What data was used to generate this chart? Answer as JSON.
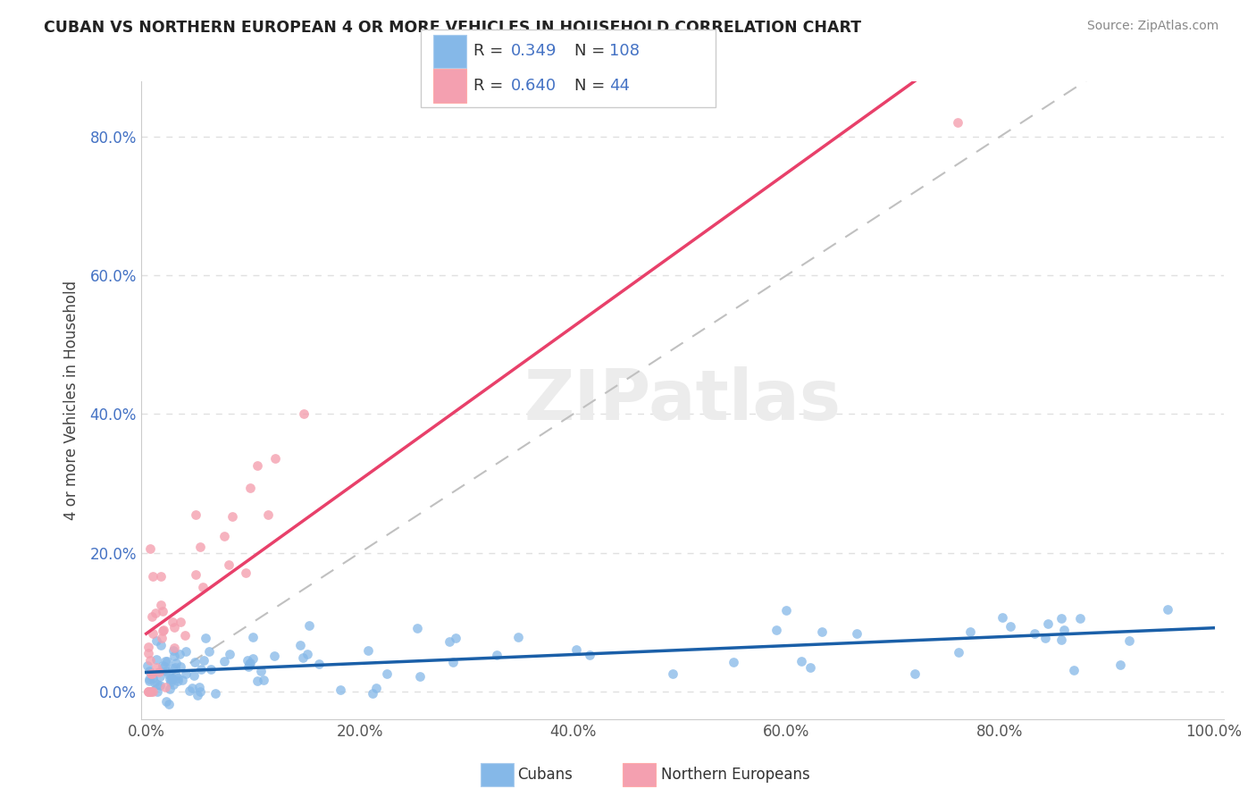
{
  "title": "CUBAN VS NORTHERN EUROPEAN 4 OR MORE VEHICLES IN HOUSEHOLD CORRELATION CHART",
  "source": "Source: ZipAtlas.com",
  "ylabel": "4 or more Vehicles in Household",
  "xlim": [
    -0.005,
    1.01
  ],
  "ylim": [
    -0.04,
    0.88
  ],
  "xticks": [
    0.0,
    0.2,
    0.4,
    0.6,
    0.8,
    1.0
  ],
  "yticks": [
    0.0,
    0.2,
    0.4,
    0.6,
    0.8
  ],
  "cubans_R": 0.349,
  "cubans_N": 108,
  "northern_R": 0.64,
  "northern_N": 44,
  "cubans_color": "#85B8E8",
  "northern_color": "#F4A0B0",
  "cubans_line_color": "#1A5FA8",
  "northern_line_color": "#E8406A",
  "ref_line_color": "#C0C0C0",
  "background_color": "#FFFFFF",
  "grid_color": "#E0E0E0",
  "title_color": "#222222",
  "source_color": "#888888",
  "tick_color_y": "#4472C4",
  "tick_color_x": "#555555",
  "watermark_color": "#ECECEC",
  "legend_edge_color": "#CCCCCC"
}
